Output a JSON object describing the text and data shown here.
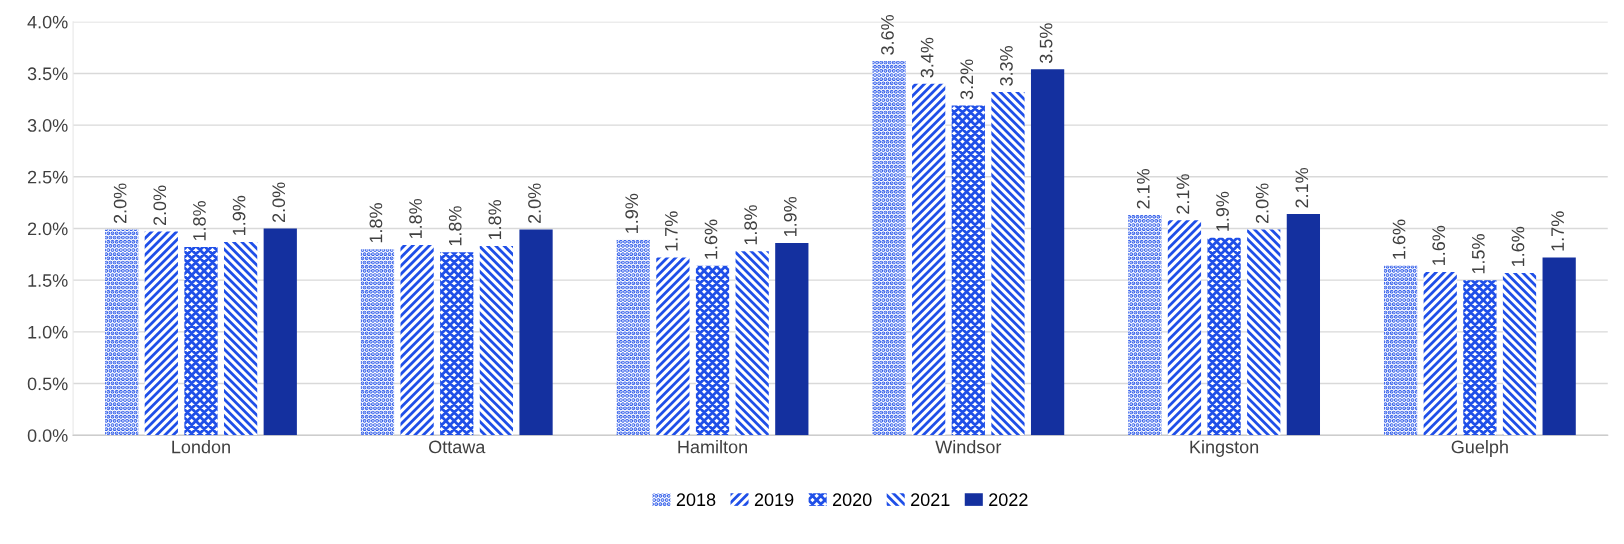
{
  "chart_data": {
    "type": "bar",
    "categories": [
      "London",
      "Ottawa",
      "Hamilton",
      "Windsor",
      "Kingston",
      "Guelph"
    ],
    "series": [
      {
        "name": "2018",
        "color": "#1f4fe8",
        "values": [
          1.99,
          1.8,
          1.89,
          3.62,
          2.13,
          1.64
        ],
        "value_labels": [
          "2.0%",
          "1.8%",
          "1.9%",
          "3.6%",
          "2.1%",
          "1.6%"
        ]
      },
      {
        "name": "2019",
        "color": "#1f4fe8",
        "values": [
          1.97,
          1.84,
          1.72,
          3.4,
          2.08,
          1.58
        ],
        "value_labels": [
          "2.0%",
          "1.8%",
          "1.7%",
          "3.4%",
          "2.1%",
          "1.6%"
        ]
      },
      {
        "name": "2020",
        "color": "#1f4fe8",
        "values": [
          1.82,
          1.77,
          1.64,
          3.19,
          1.91,
          1.5
        ],
        "value_labels": [
          "1.8%",
          "1.8%",
          "1.6%",
          "3.2%",
          "1.9%",
          "1.5%"
        ]
      },
      {
        "name": "2021",
        "color": "#1f4fe8",
        "values": [
          1.87,
          1.83,
          1.78,
          3.32,
          1.99,
          1.57
        ],
        "value_labels": [
          "1.9%",
          "1.8%",
          "1.8%",
          "3.3%",
          "2.0%",
          "1.6%"
        ]
      },
      {
        "name": "2022",
        "color": "#14309f",
        "values": [
          2.0,
          1.99,
          1.86,
          3.54,
          2.14,
          1.72
        ],
        "value_labels": [
          "2.0%",
          "2.0%",
          "1.9%",
          "3.5%",
          "2.1%",
          "1.7%"
        ]
      }
    ],
    "ylim": [
      0,
      4
    ],
    "yticks": [
      {
        "value": 0,
        "label": "0.0%"
      },
      {
        "value": 0.5,
        "label": "0.5%"
      },
      {
        "value": 1,
        "label": "1.0%"
      },
      {
        "value": 1.5,
        "label": "1.5%"
      },
      {
        "value": 2,
        "label": "2.0%"
      },
      {
        "value": 2.5,
        "label": "2.5%"
      },
      {
        "value": 3,
        "label": "3.0%"
      },
      {
        "value": 3.5,
        "label": "3.5%"
      },
      {
        "value": 4,
        "label": "4.0%"
      }
    ],
    "grid": "y",
    "legend": "bottom"
  }
}
